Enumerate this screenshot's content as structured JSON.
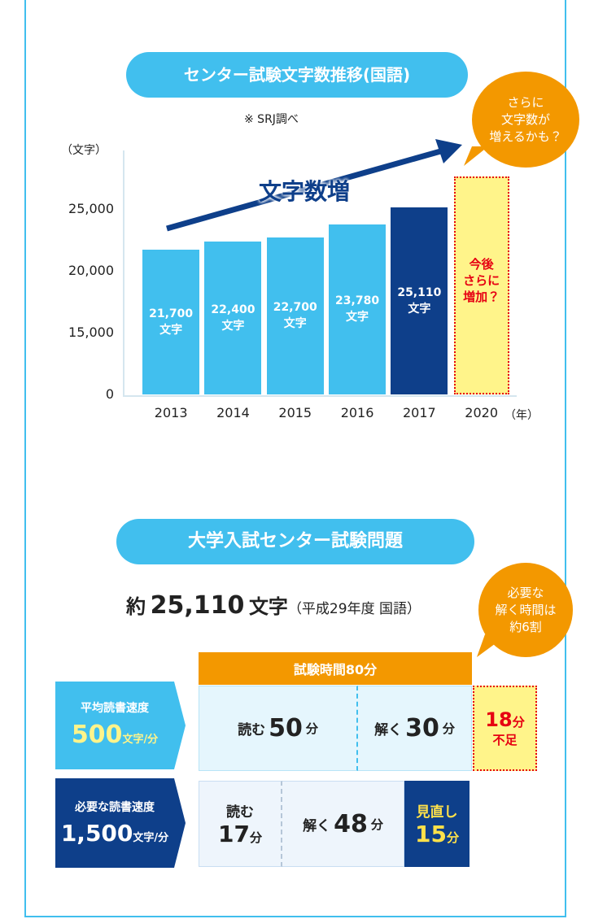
{
  "chart_data": {
    "type": "bar",
    "title": "センター試験文字数推移(国語)",
    "note": "※ SRJ調べ",
    "y_label": "（文字）",
    "x_label": "（年）",
    "categories": [
      "2013",
      "2014",
      "2015",
      "2016",
      "2017",
      "2020"
    ],
    "values": [
      21700,
      22400,
      22700,
      23780,
      25110,
      null
    ],
    "value_labels": [
      "21,700\n文字",
      "22,400\n文字",
      "22,700\n文字",
      "23,780\n文字",
      "25,110\n文字",
      null
    ],
    "colors": [
      "#41bfee",
      "#41bfee",
      "#41bfee",
      "#41bfee",
      "#0e3f8a",
      "#fff48a"
    ],
    "ylim": [
      0,
      30000
    ],
    "yticks": [
      0,
      {
        "value": 15000,
        "label": "15,000"
      },
      {
        "value": 20000,
        "label": "20,000"
      },
      {
        "value": 25000,
        "label": "25,000"
      }
    ],
    "annotations": {
      "trend": "文字数増",
      "bubble": "さらに\n文字数が\n増えるかも？",
      "future": "今後\nさらに\n増加？"
    }
  },
  "exam": {
    "title": "大学入試センター試験問題",
    "summary": {
      "prefix": "約",
      "count": "25,110",
      "unit": "文字",
      "note": "（平成29年度 国語）"
    },
    "bubble": "必要な\n解く時間は\n約6割",
    "total": "試験時間80分",
    "rows": [
      {
        "label": "平均読書速度",
        "speed": "500",
        "speed_unit": "文字/分",
        "cells": [
          {
            "label": "読む",
            "value": "50",
            "unit": "分"
          },
          {
            "label": "解く",
            "value": "30",
            "unit": "分"
          }
        ],
        "shortfall": {
          "value": "18",
          "unit": "分",
          "label": "不足"
        }
      },
      {
        "label": "必要な読書速度",
        "speed": "1,500",
        "speed_unit": "文字/分",
        "cells": [
          {
            "label": "読む",
            "value": "17",
            "unit": "分"
          },
          {
            "label": "解く",
            "value": "48",
            "unit": "分"
          },
          {
            "label": "見直し",
            "value": "15",
            "unit": "分"
          }
        ]
      }
    ]
  }
}
